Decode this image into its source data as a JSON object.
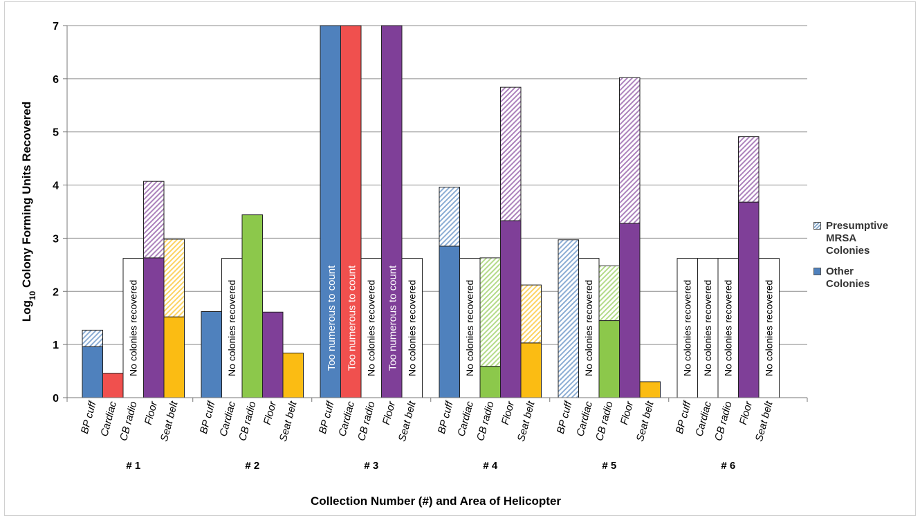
{
  "chart_data": {
    "type": "bar",
    "stacked": true,
    "ylabel_prefix": "Log",
    "ylabel_sub": "10",
    "ylabel_rest": " Colony Forming Units Recovered",
    "xlabel": "Collection Number (#) and Area of Helicopter",
    "ylim": [
      0,
      7
    ],
    "yticks": [
      "0",
      "1",
      "2",
      "3",
      "4",
      "5",
      "6",
      "7"
    ],
    "grid": true,
    "legend_position": "right",
    "areas": [
      "BP cuff",
      "Cardiac",
      "CB radio",
      "Floor",
      "Seat belt"
    ],
    "area_colors": [
      "#4f81bd",
      "#f0504e",
      "#8cc84b",
      "#7f3f98",
      "#fbbc13"
    ],
    "collections": [
      "# 1",
      "# 2",
      "# 3",
      "# 4",
      "# 5",
      "# 6"
    ],
    "series": [
      {
        "name": "Other Colonies",
        "values": [
          [
            0.96,
            0.46,
            null,
            2.63,
            1.52
          ],
          [
            1.62,
            null,
            3.44,
            1.61,
            0.84
          ],
          [
            7,
            7,
            null,
            7,
            null
          ],
          [
            2.85,
            null,
            0.59,
            3.33,
            1.03
          ],
          [
            0,
            null,
            1.45,
            3.28,
            0.3
          ],
          [
            null,
            null,
            null,
            3.68,
            null
          ]
        ]
      },
      {
        "name": "Presumptive MRSA Colonies",
        "values": [
          [
            0.31,
            0,
            null,
            1.44,
            1.46
          ],
          [
            0,
            null,
            0,
            0,
            0
          ],
          [
            0,
            0,
            null,
            0,
            null
          ],
          [
            1.11,
            null,
            2.04,
            2.51,
            1.09
          ],
          [
            2.97,
            null,
            1.03,
            2.74,
            0
          ],
          [
            null,
            null,
            null,
            1.23,
            null
          ]
        ]
      }
    ],
    "no_colonies_level": 2.62,
    "no_colonies_label": "No colonies recovered",
    "too_numerous_label": "Too numerous to count",
    "too_numerous_bars": [
      [
        2,
        0
      ],
      [
        2,
        1
      ],
      [
        2,
        3
      ]
    ],
    "legend": [
      {
        "name": "Presumptive MRSA Colonies",
        "lines": [
          "Presumptive",
          "MRSA",
          "Colonies"
        ]
      },
      {
        "name": "Other Colonies",
        "lines": [
          "Other",
          "Colonies"
        ]
      }
    ]
  }
}
